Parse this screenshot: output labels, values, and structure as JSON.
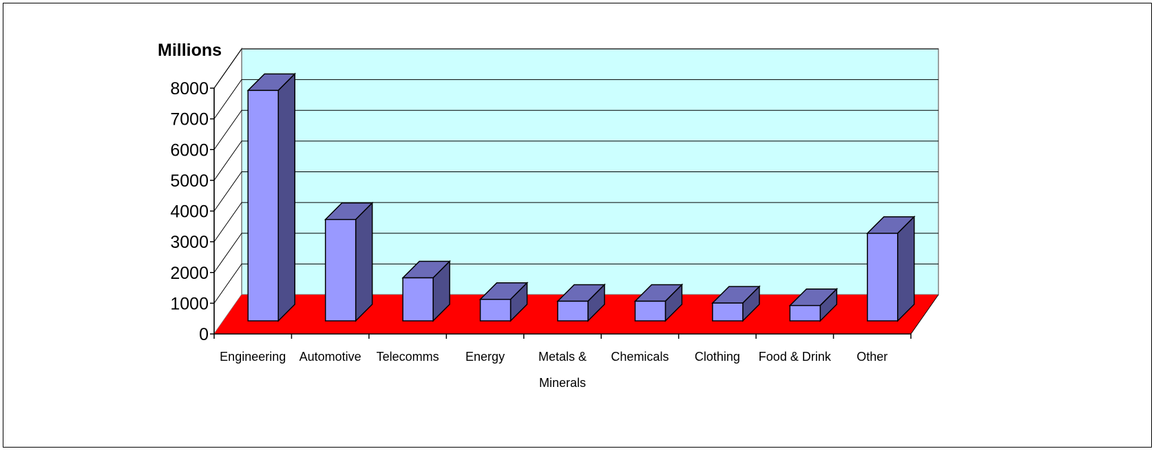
{
  "chart_data": {
    "type": "bar",
    "style": "3d-column",
    "ylabel": "Millions",
    "ylim": [
      0,
      8000
    ],
    "yticks": [
      "0",
      "1000",
      "2000",
      "3000",
      "4000",
      "5000",
      "6000",
      "7000",
      "8000"
    ],
    "categories": [
      [
        "Engineering"
      ],
      [
        "Automotive"
      ],
      [
        "Telecomms"
      ],
      [
        "Energy"
      ],
      [
        "Metals &",
        "Minerals"
      ],
      [
        "Chemicals"
      ],
      [
        "Clothing"
      ],
      [
        "Food & Drink"
      ],
      [
        "Other"
      ]
    ],
    "values": [
      7500,
      3300,
      1400,
      700,
      640,
      640,
      580,
      500,
      2850
    ],
    "grid": true,
    "colors": {
      "bar_front": "#9999ff",
      "bar_top": "#6b6bb8",
      "bar_side": "#4d4d8a",
      "back_wall": "#ccffff",
      "floor": "#ff0000",
      "grid": "#000000",
      "frame": "#000000"
    }
  }
}
